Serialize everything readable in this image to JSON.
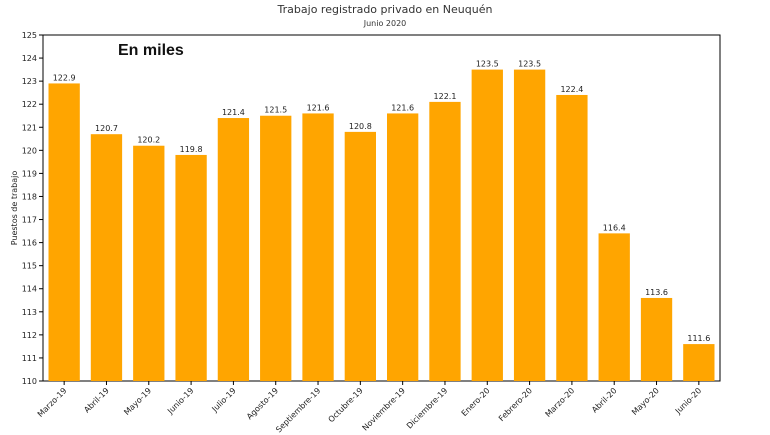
{
  "chart_data": {
    "type": "bar",
    "title": "Trabajo registrado privado en Neuquén",
    "subtitle": "Junio 2020",
    "ylabel": "Puestos de trabajo",
    "annotation": "En miles",
    "ylim": [
      110,
      125
    ],
    "yticks": [
      110,
      111,
      112,
      113,
      114,
      115,
      116,
      117,
      118,
      119,
      120,
      121,
      122,
      123,
      124,
      125
    ],
    "grid": false,
    "legend": "none",
    "bar_color": "#FFA500",
    "categories": [
      "Marzo-19",
      "Abril-19",
      "Mayo-19",
      "Junio-19",
      "Julio-19",
      "Agosto-19",
      "Septiembre-19",
      "Octubre-19",
      "Noviembre-19",
      "Diciembre-19",
      "Enero-20",
      "Febrero-20",
      "Marzo-20",
      "Abril-20",
      "Mayo-20",
      "Junio-20"
    ],
    "values": [
      122.9,
      120.7,
      120.2,
      119.8,
      121.4,
      121.5,
      121.6,
      120.8,
      121.6,
      122.1,
      123.5,
      123.5,
      122.4,
      116.4,
      113.6,
      111.6
    ],
    "data_labels": [
      "122.9",
      "120.7",
      "120.2",
      "119.8",
      "121.4",
      "121.5",
      "121.6",
      "120.8",
      "121.6",
      "122.1",
      "123.5",
      "123.5",
      "122.4",
      "116.4",
      "113.6",
      "111.6"
    ]
  }
}
